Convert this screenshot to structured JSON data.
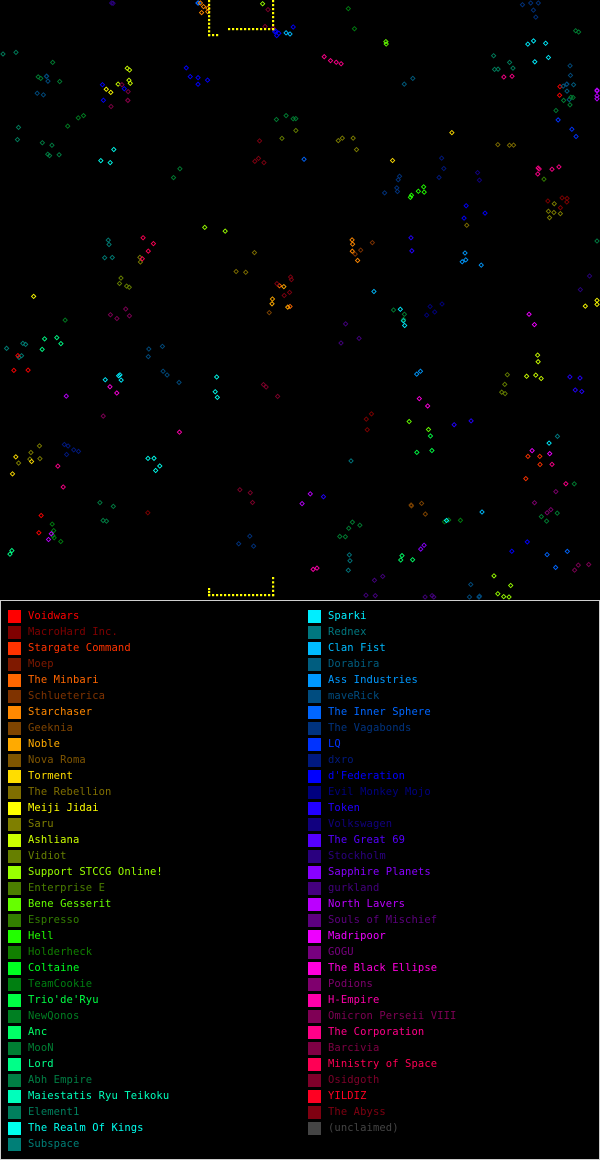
{
  "map": {
    "background": "#000000",
    "stars_visible": true,
    "home_world_color": "#ffff00"
  },
  "legend": {
    "left_column": [
      {
        "name": "Voidwars",
        "color": "#ff0000",
        "active": true
      },
      {
        "name": "MacroHard Inc.",
        "color": "#7f0000",
        "active": false
      },
      {
        "name": "Stargate Command",
        "color": "#ff3300",
        "active": true
      },
      {
        "name": "Moep",
        "color": "#7f1900",
        "active": false
      },
      {
        "name": "The Minbari",
        "color": "#ff6600",
        "active": true
      },
      {
        "name": "Schlueterica",
        "color": "#7f3300",
        "active": false
      },
      {
        "name": "Starchaser",
        "color": "#ff8800",
        "active": true
      },
      {
        "name": "Geeknia",
        "color": "#7f4400",
        "active": false
      },
      {
        "name": "Noble",
        "color": "#ffaa00",
        "active": true
      },
      {
        "name": "Nova Roma",
        "color": "#7f5500",
        "active": false
      },
      {
        "name": "Torment",
        "color": "#ffdd00",
        "active": true
      },
      {
        "name": "The Rebellion",
        "color": "#7f6e00",
        "active": false
      },
      {
        "name": "Meiji Jidai",
        "color": "#ffff00",
        "active": true
      },
      {
        "name": "Saru",
        "color": "#7f7f00",
        "active": false
      },
      {
        "name": "Ashliana",
        "color": "#ccff00",
        "active": true
      },
      {
        "name": "Vidiot",
        "color": "#667f00",
        "active": false
      },
      {
        "name": "Support STCCG Online!",
        "color": "#99ff00",
        "active": true
      },
      {
        "name": "Enterprise E",
        "color": "#4c7f00",
        "active": false
      },
      {
        "name": "Bene Gesserit",
        "color": "#66ff00",
        "active": true
      },
      {
        "name": "Espresso",
        "color": "#337f00",
        "active": false
      },
      {
        "name": "Hell",
        "color": "#22ff00",
        "active": true
      },
      {
        "name": "Holderheck",
        "color": "#117f00",
        "active": false
      },
      {
        "name": "Coltaine",
        "color": "#00ff22",
        "active": true
      },
      {
        "name": "TeamCookie",
        "color": "#007f11",
        "active": false
      },
      {
        "name": "Trio'de'Ryu",
        "color": "#00ff44",
        "active": true
      },
      {
        "name": "NewQonos",
        "color": "#007f22",
        "active": false
      },
      {
        "name": "Anc",
        "color": "#00ff66",
        "active": true
      },
      {
        "name": "MooN",
        "color": "#007f33",
        "active": false
      },
      {
        "name": "Lord",
        "color": "#00ff88",
        "active": true
      },
      {
        "name": "Abh Empire",
        "color": "#007f44",
        "active": false
      },
      {
        "name": "Maiestatis Ryu Teikoku",
        "color": "#00ffbb",
        "active": true
      },
      {
        "name": "Element1",
        "color": "#007f5d",
        "active": false
      },
      {
        "name": "The Realm Of Kings",
        "color": "#00ffee",
        "active": true
      },
      {
        "name": "Subspace",
        "color": "#007f77",
        "active": false
      }
    ],
    "right_column": [
      {
        "name": "Sparki",
        "color": "#00eeff",
        "active": true
      },
      {
        "name": "Rednex",
        "color": "#00777f",
        "active": false
      },
      {
        "name": "Clan Fist",
        "color": "#00bbff",
        "active": true
      },
      {
        "name": "Dorabira",
        "color": "#005d7f",
        "active": false
      },
      {
        "name": "Ass Industries",
        "color": "#0099ff",
        "active": true
      },
      {
        "name": "maveRick",
        "color": "#004c7f",
        "active": false
      },
      {
        "name": "The Inner Sphere",
        "color": "#0066ff",
        "active": true
      },
      {
        "name": "The Vagabonds",
        "color": "#00337f",
        "active": false
      },
      {
        "name": "LQ",
        "color": "#0033ff",
        "active": true
      },
      {
        "name": "dxro",
        "color": "#00197f",
        "active": false
      },
      {
        "name": "d'Federation",
        "color": "#0000ff",
        "active": true
      },
      {
        "name": "Evil Monkey Mojo",
        "color": "#00007f",
        "active": false
      },
      {
        "name": "Token",
        "color": "#2200ff",
        "active": true
      },
      {
        "name": "Volkswagen",
        "color": "#11007f",
        "active": false
      },
      {
        "name": "The Great 69",
        "color": "#5500ff",
        "active": true
      },
      {
        "name": "Stockholm",
        "color": "#2a007f",
        "active": false
      },
      {
        "name": "Sapphire Planets",
        "color": "#8800ff",
        "active": true
      },
      {
        "name": "gurkland",
        "color": "#44007f",
        "active": false
      },
      {
        "name": "North Lavers",
        "color": "#bb00ff",
        "active": true
      },
      {
        "name": "Souls of Mischief",
        "color": "#5d007f",
        "active": false
      },
      {
        "name": "Madripoor",
        "color": "#ee00ff",
        "active": true
      },
      {
        "name": "GOGU",
        "color": "#77007f",
        "active": false
      },
      {
        "name": "The Black Ellipse",
        "color": "#ff00dd",
        "active": true
      },
      {
        "name": "Podions",
        "color": "#7f006e",
        "active": false
      },
      {
        "name": "H-Empire",
        "color": "#ff00aa",
        "active": true
      },
      {
        "name": "Omicron Perseii VIII",
        "color": "#7f0055",
        "active": false
      },
      {
        "name": "The Corporation",
        "color": "#ff0088",
        "active": true
      },
      {
        "name": "Barcivia",
        "color": "#7f0044",
        "active": false
      },
      {
        "name": "Ministry of Space",
        "color": "#ff0055",
        "active": true
      },
      {
        "name": "Osidgoth",
        "color": "#7f002a",
        "active": false
      },
      {
        "name": "YILDIZ",
        "color": "#ff0022",
        "active": true
      },
      {
        "name": "The Abyss",
        "color": "#7f0011",
        "active": false
      },
      {
        "name": "(unclaimed)",
        "color": "#444444",
        "active": false
      }
    ]
  }
}
